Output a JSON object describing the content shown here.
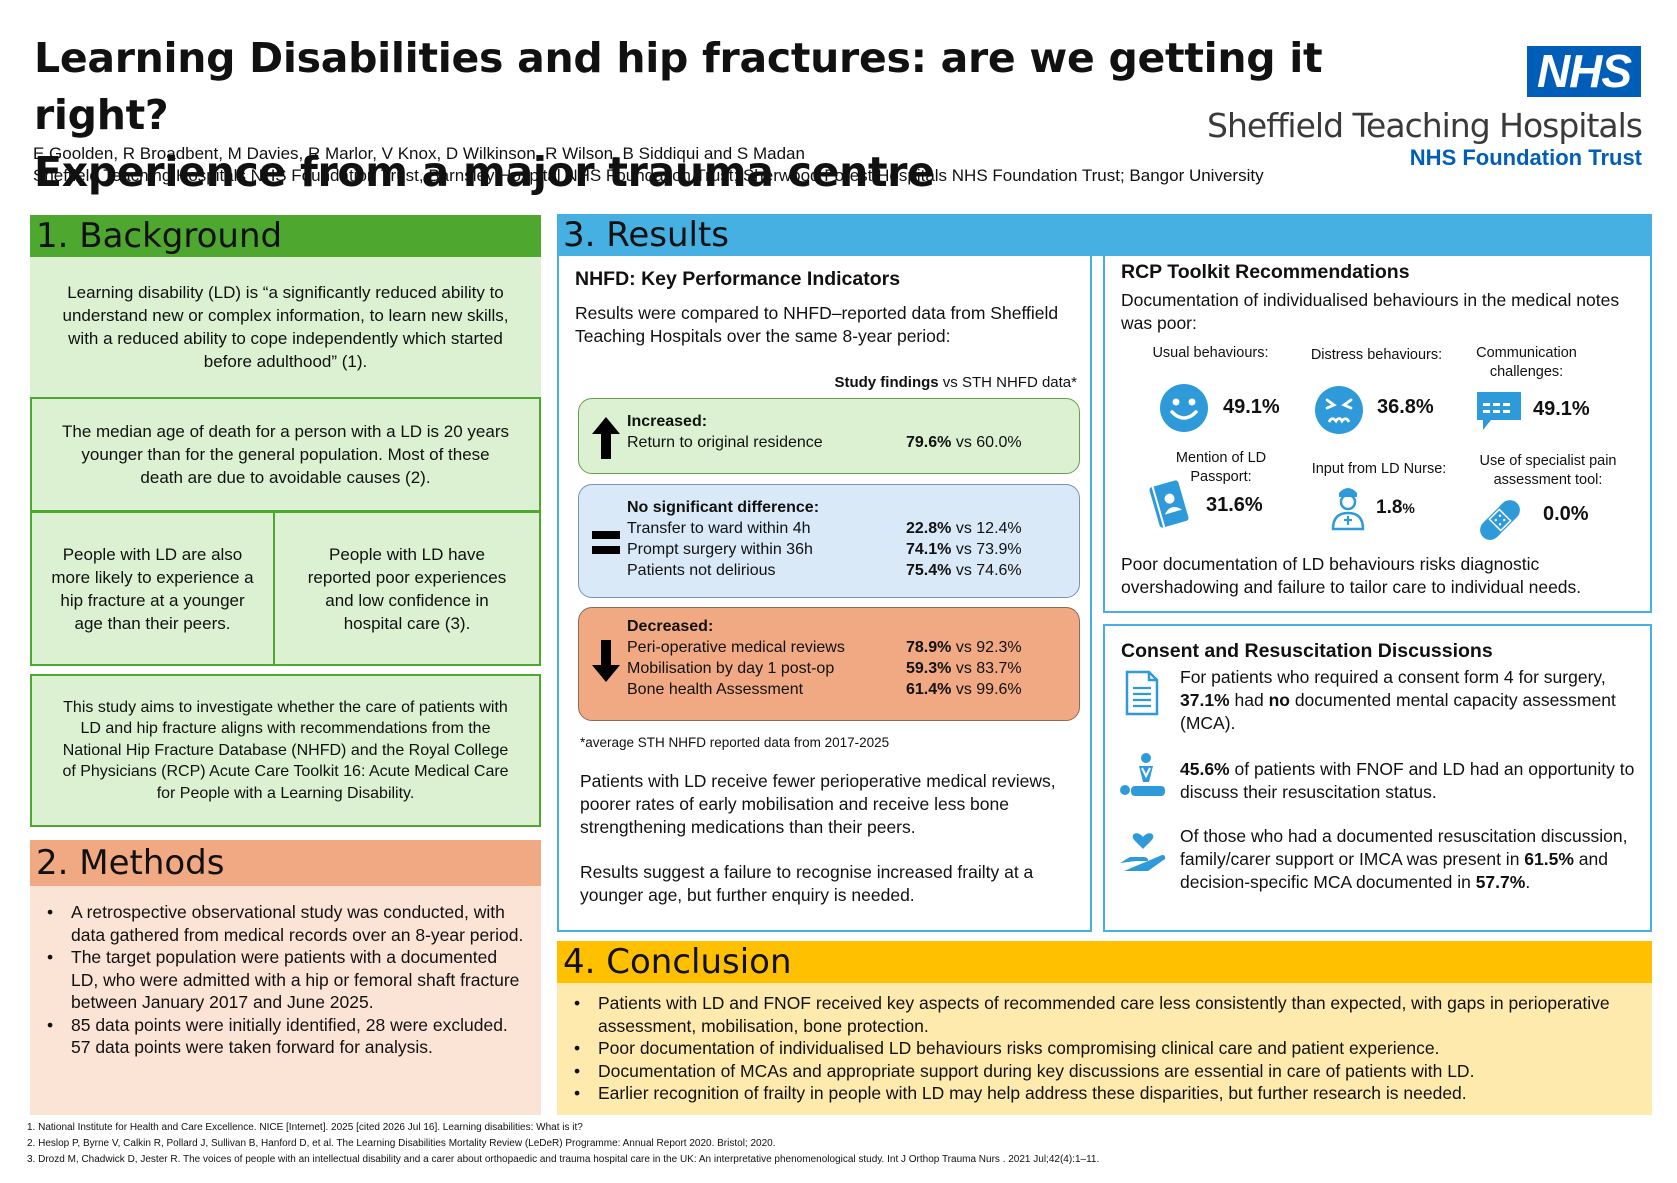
{
  "header": {
    "title_line1": "Learning Disabilities and hip fractures: are we getting it right?",
    "title_line2": "Experience from a major trauma centre",
    "authors": "E Goolden, R Broadbent, M Davies, R Marlor, V Knox, D Wilkinson, R Wilson, B Siddiqui and S Madan",
    "affiliations": "Sheffield Teaching Hospitals NHS Foundation Trust, Barnsley Hospital NHS Foundation Trust; Sherwood Forest Hospitals NHS Foundation Trust; Bangor University",
    "logo_nhs": "NHS",
    "logo_trust": "Sheffield Teaching Hospitals",
    "logo_sub": "NHS Foundation Trust"
  },
  "colors": {
    "green": "#4ea72e",
    "light_green": "#dbf1d2",
    "orange": "#f1a983",
    "light_orange": "#fbe3d6",
    "blue": "#45b0e1",
    "yellow": "#ffc000",
    "light_yellow": "#ffeaad",
    "nhs_blue": "#005eb8"
  },
  "background": {
    "heading": "1. Background",
    "definition": "Learning disability (LD) is “a significantly reduced ability to understand new or complex information, to learn new skills, with a reduced ability to cope independently which started before adulthood” (1).",
    "median_age": "The median age of death for a person with a LD is 20 years younger than for the general population. Most of these death are due to avoidable causes (2).",
    "fracture_risk": "People with LD are also more likely to experience a hip fracture at a younger age than their peers.",
    "experience": "People with LD have reported poor experiences and low confidence in hospital care (3).",
    "aim": "This study aims to investigate whether the care of patients with LD and hip fracture aligns with recommendations from the National Hip Fracture Database (NHFD) and the Royal College of Physicians (RCP) Acute Care Toolkit 16: Acute Medical Care for People with a Learning Disability."
  },
  "methods": {
    "heading": "2. Methods",
    "items": [
      "A retrospective observational study was conducted, with data gathered from medical records over an 8-year period.",
      "The target population were patients with a documented LD, who were admitted with a hip or femoral shaft fracture between January 2017 and June 2025.",
      "85 data points were initially identified, 28 were excluded. 57 data points were taken forward for analysis."
    ]
  },
  "results": {
    "heading": "3. Results",
    "kpi": {
      "title": "NHFD: Key Performance Indicators",
      "intro": "Results were compared to NHFD–reported data from Sheffield Teaching Hospitals over the same 8-year period:",
      "legend_bold": "Study findings",
      "legend_rest": " vs STH NHFD data*",
      "increased": {
        "label": "Increased:",
        "rows": [
          {
            "name": "Return to original residence",
            "study": "79.6%",
            "sth": " vs 60.0%"
          }
        ]
      },
      "nosig": {
        "label": "No significant difference:",
        "rows": [
          {
            "name": "Transfer to ward within 4h",
            "study": "22.8%",
            "sth": " vs 12.4%"
          },
          {
            "name": "Prompt surgery within 36h",
            "study": "74.1%",
            "sth": " vs 73.9%"
          },
          {
            "name": "Patients not delirious",
            "study": "75.4%",
            "sth": " vs 74.6%"
          }
        ]
      },
      "decreased": {
        "label": "Decreased:",
        "rows": [
          {
            "name": "Peri-operative medical reviews",
            "study": "78.9%",
            "sth": " vs 92.3%"
          },
          {
            "name": "Mobilisation by day 1 post-op",
            "study": "59.3%",
            "sth": " vs 83.7%"
          },
          {
            "name": "Bone health Assessment",
            "study": "61.4%",
            "sth": " vs 99.6%"
          }
        ]
      },
      "footnote": "*average STH NHFD reported data from 2017-2025",
      "summary1": "Patients with LD receive fewer perioperative medical reviews, poorer rates of early mobilisation and receive less bone strengthening medications than their peers.",
      "summary2": "Results suggest a failure to recognise increased frailty at a younger age, but further enquiry is needed."
    },
    "rcp": {
      "title": "RCP Toolkit Recommendations",
      "intro": "Documentation of individualised behaviours in the medical notes was poor:",
      "stats": [
        {
          "label": "Usual behaviours:",
          "value": "49.1%",
          "icon": "smiley-face-icon"
        },
        {
          "label": "Distress behaviours:",
          "value": "36.8%",
          "icon": "distressed-face-icon"
        },
        {
          "label": "Communication challenges:",
          "value": "49.1%",
          "icon": "speech-bubble-icon"
        },
        {
          "label": "Mention of LD Passport:",
          "value": "31.6%",
          "icon": "passport-icon"
        },
        {
          "label": "Input from LD Nurse:",
          "value": "1.8",
          "value_suffix": "%",
          "icon": "nurse-icon"
        },
        {
          "label": "Use of specialist pain assessment tool:",
          "value": "0.0%",
          "icon": "plaster-icon"
        }
      ],
      "conclusion": "Poor documentation of LD behaviours risks diagnostic overshadowing and failure to tailor care to individual needs."
    },
    "consent": {
      "title": "Consent and Resuscitation Discussions",
      "item1_a": "For patients who required a consent form 4 for surgery, ",
      "item1_b": "37.1%",
      "item1_c": " had ",
      "item1_d": "no",
      "item1_e": " documented mental capacity assessment (MCA).",
      "item2_a": "45.6%",
      "item2_b": " of patients with FNOF and LD had an opportunity to discuss their resuscitation status.",
      "item3_a": "Of those who had a documented resuscitation discussion, family/carer support or IMCA was present in ",
      "item3_b": "61.5%",
      "item3_c": " and decision-specific MCA documented in ",
      "item3_d": "57.7%",
      "item3_e": "."
    }
  },
  "conclusion": {
    "heading": "4. Conclusion",
    "items": [
      "Patients with LD and FNOF received key aspects of recommended care less consistently than expected, with gaps in perioperative assessment, mobilisation, bone protection.",
      "Poor documentation of individualised LD behaviours risks compromising clinical care and patient experience.",
      "Documentation of MCAs and appropriate support during key discussions are essential in care of patients with LD.",
      "Earlier recognition of frailty in people with LD may help address these disparities, but further research is needed."
    ]
  },
  "references": [
    "1. National Institute for Health and Care Excellence. NICE [Internet]. 2025 [cited 2026 Jul 16]. Learning disabilities: What is it?",
    "2. Heslop P, Byrne V, Calkin R, Pollard J, Sullivan B, Hanford D, et al. The Learning Disabilities Mortality Review (LeDeR) Programme: Annual Report 2020. Bristol; 2020.",
    "3. Drozd M, Chadwick D, Jester R. The voices of people with an intellectual disability and a carer about orthopaedic and trauma hospital care in the UK: An interpretative phenomenological study. Int J Orthop Trauma Nurs . 2021 Jul;42(4):1–11."
  ]
}
